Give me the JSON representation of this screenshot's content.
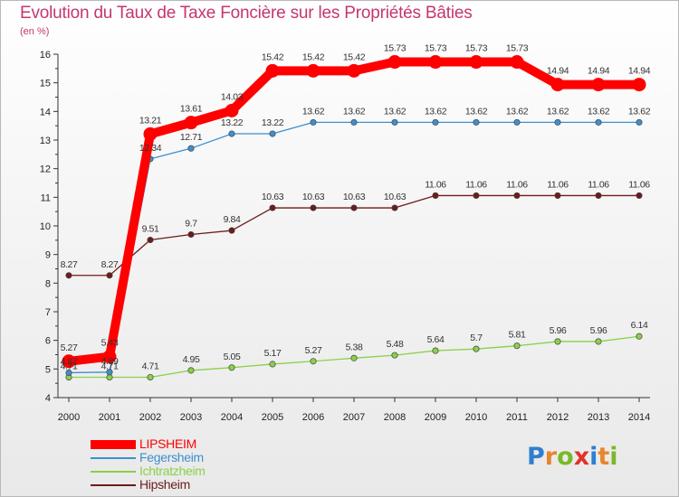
{
  "chart_data": {
    "type": "line",
    "title": "Evolution du Taux de Taxe Foncière sur les Propriétés Bâties",
    "subtitle": "(en %)",
    "x": [
      "2000",
      "2001",
      "2002",
      "2003",
      "2004",
      "2005",
      "2006",
      "2007",
      "2008",
      "2009",
      "2010",
      "2011",
      "2012",
      "2013",
      "2014"
    ],
    "ylim": [
      4,
      16
    ],
    "yticks": [
      "4",
      "5",
      "6",
      "7",
      "8",
      "9",
      "10",
      "11",
      "12",
      "13",
      "14",
      "15",
      "16"
    ],
    "grid": false,
    "legend_position": "bottom-left",
    "series": [
      {
        "name": "LIPSHEIM",
        "color": "#ff0000",
        "values": [
          5.27,
          5.43,
          13.21,
          13.61,
          14.03,
          15.42,
          15.42,
          15.42,
          15.73,
          15.73,
          15.73,
          15.73,
          14.94,
          14.94,
          14.94
        ],
        "labels": [
          "5.27",
          "5.43",
          "13.21",
          "13.61",
          "14.03",
          "15.42",
          "15.42",
          "15.42",
          "15.73",
          "15.73",
          "15.73",
          "15.73",
          "14.94",
          "14.94",
          "14.94"
        ]
      },
      {
        "name": "Fegersheim",
        "color": "#3d8fd0",
        "values": [
          4.87,
          4.89,
          12.34,
          12.71,
          13.22,
          13.22,
          13.62,
          13.62,
          13.62,
          13.62,
          13.62,
          13.62,
          13.62,
          13.62,
          13.62
        ],
        "labels": [
          "4.87",
          "4.89",
          "12.34",
          "12.71",
          "13.22",
          "13.22",
          "13.62",
          "13.62",
          "13.62",
          "13.62",
          "13.62",
          "13.62",
          "13.62",
          "13.62",
          "13.62"
        ]
      },
      {
        "name": "Ichtratzheim",
        "color": "#8ad049",
        "values": [
          4.71,
          4.71,
          4.71,
          4.95,
          5.05,
          5.17,
          5.27,
          5.38,
          5.48,
          5.64,
          5.7,
          5.81,
          5.96,
          5.96,
          6.14
        ],
        "labels": [
          "4.71",
          "4.71",
          "4.71",
          "4.95",
          "5.05",
          "5.17",
          "5.27",
          "5.38",
          "5.48",
          "5.64",
          "5.7",
          "5.81",
          "5.96",
          "5.96",
          "6.14"
        ]
      },
      {
        "name": "Hipsheim",
        "color": "#6d1b1b",
        "values": [
          8.27,
          8.27,
          9.51,
          9.7,
          9.84,
          10.63,
          10.63,
          10.63,
          10.63,
          11.06,
          11.06,
          11.06,
          11.06,
          11.06,
          11.06
        ],
        "labels": [
          "8.27",
          "8.27",
          "9.51",
          "9.7",
          "9.84",
          "10.63",
          "10.63",
          "10.63",
          "10.63",
          "11.06",
          "11.06",
          "11.06",
          "11.06",
          "11.06",
          "11.06"
        ]
      }
    ]
  },
  "logo": {
    "text": "Proxiti",
    "letter_colors": [
      "#2f7fd0",
      "#e9852a",
      "#79b928",
      "#e0322d",
      "#2f7fd0",
      "#e9852a",
      "#79b928"
    ]
  }
}
